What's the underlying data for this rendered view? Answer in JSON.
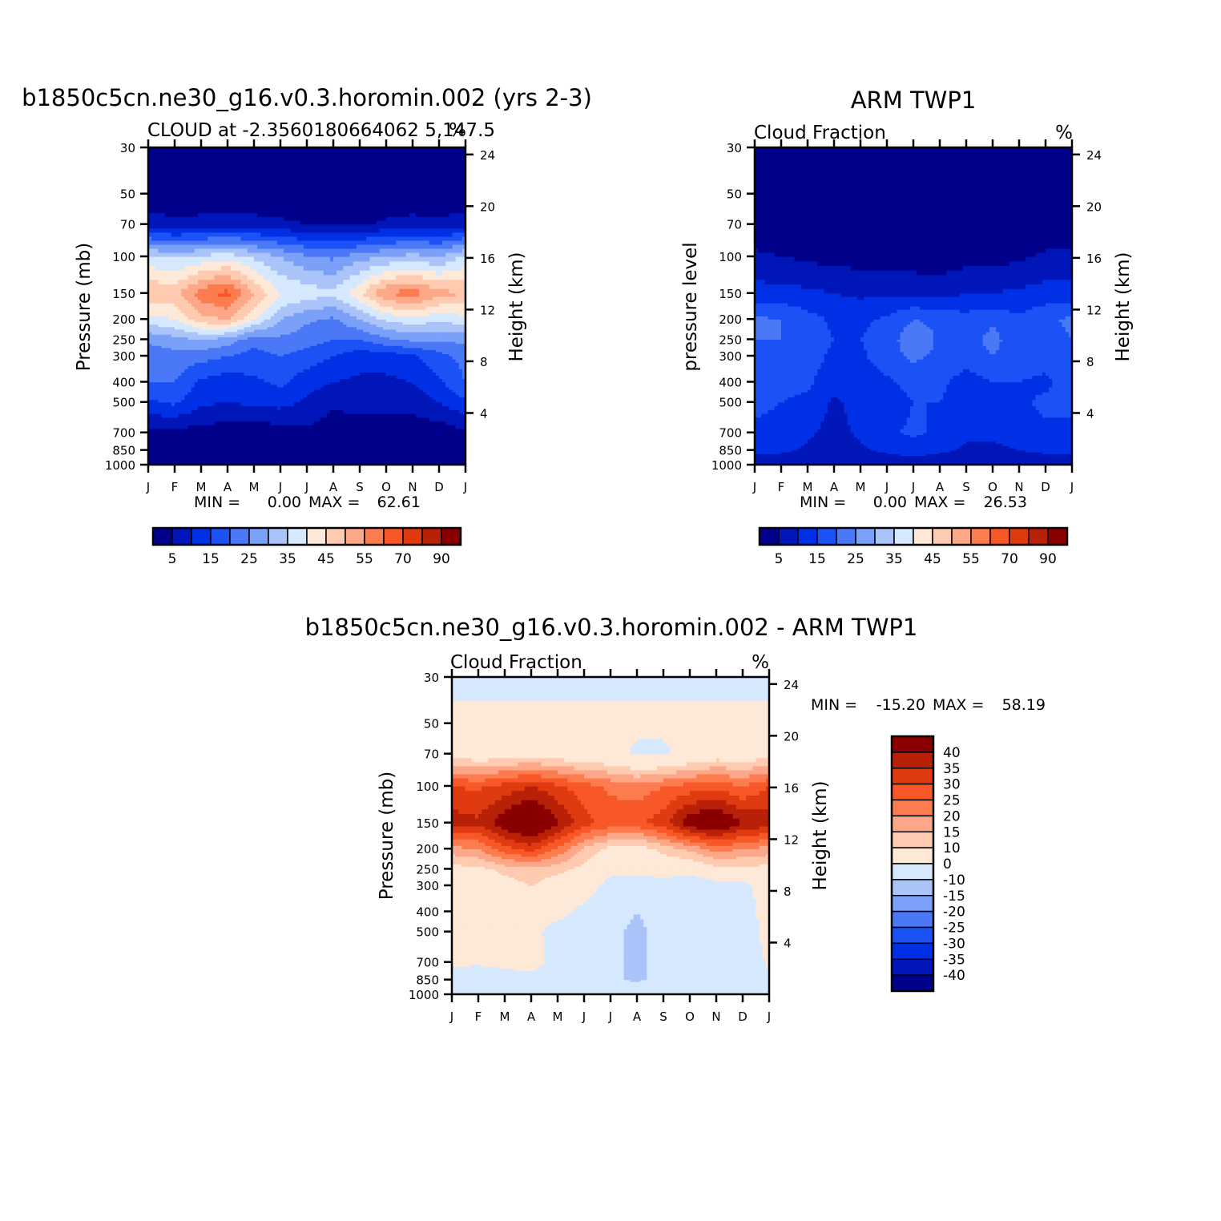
{
  "figure": {
    "panel_a_title": "b1850c5cn.ne30_g16.v0.3.horomin.002 (yrs 2-3)",
    "panel_b_title": "ARM TWP1",
    "panel_c_title": "b1850c5cn.ne30_g16.v0.3.horomin.002 - ARM TWP1"
  },
  "chart_data": [
    {
      "id": "model",
      "type": "heatmap",
      "title": "b1850c5cn.ne30_g16.v0.3.horomin.002 (yrs 2-3)",
      "subtitle": "CLOUD at -2.3560180664062 5,147.5",
      "units": "%",
      "ylabel": "Pressure (mb)",
      "ylabel_right": "Height (km)",
      "x": [
        "J",
        "F",
        "M",
        "A",
        "M",
        "J",
        "J",
        "A",
        "S",
        "O",
        "N",
        "D",
        "J"
      ],
      "y_levels": [
        1000,
        850,
        700,
        500,
        400,
        300,
        250,
        200,
        150,
        100,
        70,
        50,
        30
      ],
      "y_ticks": [
        "30",
        "50",
        "70",
        "100",
        "150",
        "200",
        "250",
        "300",
        "400",
        "500",
        "700",
        "850",
        "1000"
      ],
      "height_ticks": [
        "24",
        "20",
        "16",
        "12",
        "8",
        "4"
      ],
      "min_label": "MIN =",
      "min_value": "0.00",
      "max_label": "MAX =",
      "max_value": "62.61",
      "levels": [
        0,
        5,
        10,
        15,
        20,
        25,
        30,
        35,
        40,
        45,
        50,
        55,
        60,
        70,
        80,
        90,
        100
      ],
      "colorbar_labels": [
        "5",
        "15",
        "25",
        "35",
        "45",
        "55",
        "70",
        "90"
      ],
      "z": [
        [
          4,
          3,
          3,
          3,
          3,
          3,
          3,
          3,
          3,
          3,
          3,
          3,
          4
        ],
        [
          2,
          2,
          2,
          2,
          2,
          1,
          5,
          1,
          1,
          1,
          1,
          1,
          2
        ],
        [
          4,
          3,
          3,
          2,
          2,
          2,
          4,
          2,
          2,
          2,
          2,
          2,
          4
        ],
        [
          14,
          16,
          11,
          10,
          11,
          12,
          9,
          6,
          7,
          7,
          7,
          10,
          14
        ],
        [
          20,
          20,
          14,
          12,
          14,
          16,
          12,
          10,
          9,
          9,
          10,
          14,
          20
        ],
        [
          22,
          23,
          22,
          20,
          18,
          20,
          18,
          15,
          12,
          12,
          14,
          18,
          22
        ],
        [
          26,
          28,
          30,
          28,
          22,
          24,
          22,
          20,
          20,
          24,
          26,
          26,
          26
        ],
        [
          38,
          40,
          48,
          50,
          40,
          30,
          26,
          24,
          30,
          36,
          38,
          36,
          38
        ],
        [
          50,
          48,
          58,
          62,
          50,
          40,
          38,
          36,
          44,
          55,
          58,
          52,
          50
        ],
        [
          36,
          34,
          36,
          38,
          34,
          30,
          26,
          24,
          28,
          30,
          32,
          30,
          36
        ],
        [
          8,
          6,
          7,
          8,
          7,
          6,
          5,
          4,
          4,
          6,
          7,
          6,
          8
        ],
        [
          1,
          1,
          1,
          1,
          1,
          1,
          1,
          1,
          1,
          1,
          1,
          1,
          1
        ],
        [
          0,
          0,
          0,
          0,
          0,
          0,
          0,
          0,
          0,
          0,
          0,
          0,
          0
        ]
      ]
    },
    {
      "id": "obs",
      "type": "heatmap",
      "title": "ARM TWP1",
      "subtitle": "Cloud Fraction",
      "units": "%",
      "ylabel": "pressure level",
      "ylabel_right": "Height (km)",
      "x": [
        "J",
        "F",
        "M",
        "A",
        "M",
        "J",
        "J",
        "A",
        "S",
        "O",
        "N",
        "D",
        "J"
      ],
      "y_levels": [
        1000,
        850,
        700,
        500,
        400,
        300,
        250,
        200,
        150,
        100,
        70,
        50,
        30
      ],
      "y_ticks": [
        "30",
        "50",
        "70",
        "100",
        "150",
        "200",
        "250",
        "300",
        "400",
        "500",
        "700",
        "850",
        "1000"
      ],
      "height_ticks": [
        "24",
        "20",
        "16",
        "12",
        "8",
        "4"
      ],
      "min_label": "MIN =",
      "min_value": "0.00",
      "max_label": "MAX =",
      "max_value": "26.53",
      "levels": [
        0,
        5,
        10,
        15,
        20,
        25,
        30,
        35,
        40,
        45,
        50,
        55,
        60,
        70,
        80,
        90,
        100
      ],
      "colorbar_labels": [
        "5",
        "15",
        "25",
        "35",
        "45",
        "55",
        "70",
        "90"
      ],
      "z": [
        [
          6,
          6,
          6,
          5,
          5,
          6,
          7,
          6,
          6,
          6,
          6,
          6,
          6
        ],
        [
          11,
          11,
          9,
          6,
          9,
          11,
          12,
          11,
          9,
          9,
          10,
          11,
          11
        ],
        [
          14,
          14,
          11,
          8,
          11,
          14,
          16,
          14,
          11,
          11,
          12,
          14,
          14
        ],
        [
          16,
          15,
          14,
          9,
          12,
          12,
          15,
          15,
          12,
          11,
          14,
          16,
          16
        ],
        [
          17,
          16,
          16,
          12,
          12,
          14,
          17,
          16,
          13,
          15,
          15,
          14,
          17
        ],
        [
          18,
          18,
          17,
          14,
          14,
          18,
          21,
          19,
          17,
          20,
          17,
          17,
          18
        ],
        [
          20,
          20,
          17,
          15,
          15,
          17,
          24,
          19,
          17,
          22,
          16,
          18,
          20
        ],
        [
          21,
          20,
          17,
          14,
          14,
          16,
          20,
          19,
          17,
          19,
          16,
          19,
          21
        ],
        [
          12,
          12,
          11,
          10,
          9,
          9,
          9,
          8,
          10,
          10,
          11,
          12,
          12
        ],
        [
          6,
          5,
          4,
          3,
          3,
          2,
          2,
          2,
          3,
          3,
          4,
          6,
          6
        ],
        [
          1,
          1,
          1,
          1,
          1,
          1,
          1,
          1,
          1,
          1,
          1,
          1,
          1
        ],
        [
          0,
          0,
          0,
          0,
          0,
          0,
          0,
          0,
          0,
          0,
          0,
          0,
          0
        ],
        [
          0,
          0,
          0,
          0,
          0,
          0,
          0,
          0,
          0,
          0,
          0,
          0,
          0
        ]
      ]
    },
    {
      "id": "diff",
      "type": "heatmap",
      "title": "b1850c5cn.ne30_g16.v0.3.horomin.002 - ARM TWP1",
      "subtitle": "Cloud Fraction",
      "units": "%",
      "ylabel": "Pressure (mb)",
      "ylabel_right": "Height (km)",
      "x": [
        "J",
        "F",
        "M",
        "A",
        "M",
        "J",
        "J",
        "A",
        "S",
        "O",
        "N",
        "D",
        "J"
      ],
      "y_levels": [
        1000,
        850,
        700,
        500,
        400,
        300,
        250,
        200,
        150,
        100,
        70,
        50,
        30
      ],
      "y_ticks": [
        "30",
        "50",
        "70",
        "100",
        "150",
        "200",
        "250",
        "300",
        "400",
        "500",
        "700",
        "850",
        "1000"
      ],
      "height_ticks": [
        "24",
        "20",
        "16",
        "12",
        "8",
        "4"
      ],
      "min_label": "MIN =",
      "min_value": "-15.20",
      "max_label": "MAX =",
      "max_value": "58.19",
      "levels": [
        -100,
        -40,
        -35,
        -30,
        -25,
        -20,
        -15,
        -10,
        0,
        10,
        15,
        20,
        25,
        30,
        35,
        40,
        100
      ],
      "colorbar_labels": [
        "40",
        "35",
        "30",
        "25",
        "20",
        "15",
        "10",
        "0",
        "-10",
        "-15",
        "-20",
        "-25",
        "-30",
        "-35",
        "-40"
      ],
      "z": [
        [
          -2,
          -3,
          -3,
          -2,
          -2,
          -3,
          -4,
          -3,
          -3,
          -3,
          -3,
          -3,
          -2
        ],
        [
          -5,
          -6,
          -5,
          -3,
          -5,
          -7,
          -9,
          -11,
          -8,
          -8,
          -8,
          -9,
          -5
        ],
        [
          2,
          1,
          3,
          4,
          -4,
          -6,
          -8,
          -12,
          -7,
          -6,
          -6,
          -10,
          2
        ],
        [
          5,
          4,
          3,
          3,
          -4,
          -6,
          -7,
          -13,
          -5,
          -4,
          -4,
          -7,
          5
        ],
        [
          5,
          6,
          5,
          4,
          3,
          -2,
          -4,
          -10,
          -4,
          -6,
          -4,
          -6,
          5
        ],
        [
          6,
          5,
          7,
          10,
          6,
          4,
          -3,
          -6,
          -5,
          -8,
          -3,
          -3,
          6
        ],
        [
          8,
          8,
          12,
          14,
          12,
          8,
          2,
          3,
          5,
          4,
          8,
          8,
          8
        ],
        [
          18,
          20,
          28,
          32,
          24,
          14,
          8,
          6,
          12,
          16,
          22,
          20,
          18
        ],
        [
          38,
          36,
          44,
          50,
          41,
          32,
          28,
          29,
          33,
          44,
          48,
          40,
          38
        ],
        [
          30,
          29,
          32,
          35,
          31,
          27,
          24,
          22,
          25,
          27,
          28,
          25,
          30
        ],
        [
          7,
          5,
          6,
          7,
          6,
          4,
          3,
          -1,
          -1,
          3,
          6,
          5,
          7
        ],
        [
          1,
          1,
          1,
          1,
          1,
          1,
          1,
          1,
          1,
          1,
          1,
          1,
          1
        ],
        [
          -1,
          -1,
          -1,
          -1,
          -1,
          -1,
          -1,
          -1,
          -1,
          -1,
          -1,
          -1,
          -1
        ]
      ]
    }
  ],
  "colors": {
    "seq": [
      "#00008a",
      "#0016b8",
      "#0030e6",
      "#1a52f6",
      "#4a78f6",
      "#7aa0f8",
      "#aac4fa",
      "#d6e8fe",
      "#fee8d8",
      "#fecab0",
      "#fca888",
      "#fc7c50",
      "#f85828",
      "#e03a10",
      "#b82008",
      "#8a0000"
    ],
    "div": [
      "#00008a",
      "#0016b8",
      "#0030e6",
      "#1a52f6",
      "#4a78f6",
      "#7aa0f8",
      "#aac4fa",
      "#d6e8fe",
      "#fee8d8",
      "#fecab0",
      "#fca888",
      "#fc7c50",
      "#f85828",
      "#e03a10",
      "#b82008",
      "#8a0000"
    ]
  }
}
